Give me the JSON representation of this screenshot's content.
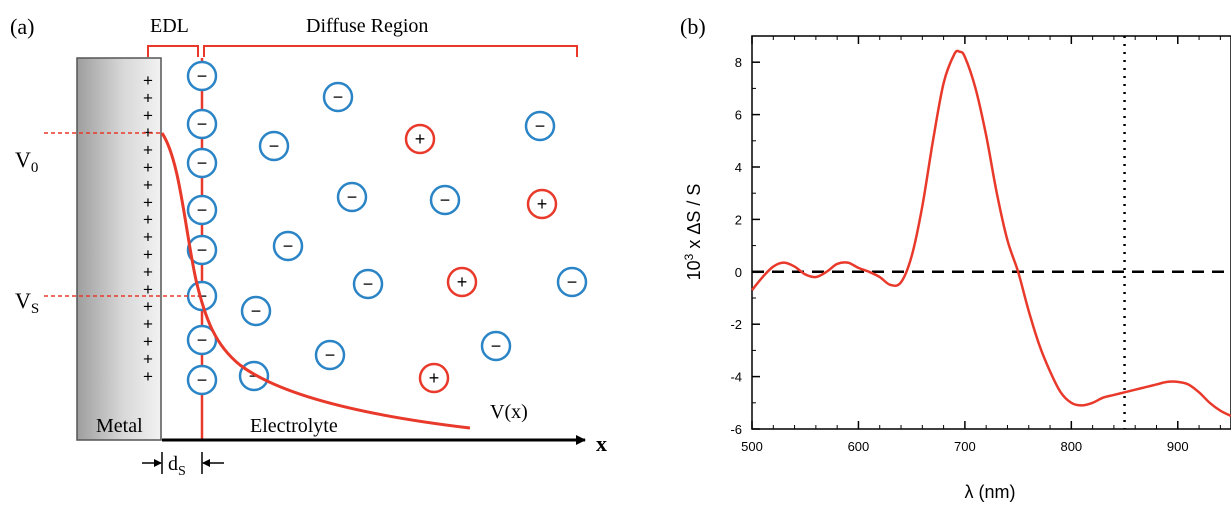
{
  "panel_a": {
    "label": "(a)",
    "edl_label": "EDL",
    "diffuse_label": "Diffuse Region",
    "v0_label": "V",
    "v0_sub": "0",
    "vs_label": "V",
    "vs_sub": "S",
    "metal_label": "Metal",
    "electrolyte_label": "Electrolyte",
    "vx_label": "V(x)",
    "x_label": "x",
    "ds_label": "d",
    "ds_sub": "S",
    "plus_sign": "+",
    "minus_sign": "−",
    "colors": {
      "red": "#e8392b",
      "blue": "#2a84c6",
      "metal_dark": "#a9a9a9",
      "metal_light": "#ececec"
    }
  },
  "panel_b": {
    "label": "(b)",
    "chart_data": {
      "type": "line",
      "xlabel": "λ (nm)",
      "ylabel_base": "10",
      "ylabel_exp": "3",
      "ylabel_rest": " x ΔS / S",
      "xlim": [
        500,
        950
      ],
      "ylim": [
        -6,
        9
      ],
      "xticks": [
        500,
        600,
        700,
        800,
        900
      ],
      "yticks": [
        -6,
        -4,
        -2,
        0,
        2,
        4,
        6,
        8
      ],
      "reference_lines": {
        "horizontal_dashed_y": 0,
        "vertical_dotted_x": 850
      },
      "series": [
        {
          "color": "#e8392b",
          "x": [
            500,
            510,
            520,
            530,
            540,
            550,
            560,
            570,
            580,
            590,
            600,
            610,
            620,
            630,
            640,
            650,
            660,
            670,
            680,
            690,
            695,
            700,
            710,
            720,
            730,
            740,
            750,
            760,
            770,
            780,
            790,
            800,
            810,
            820,
            830,
            840,
            850,
            860,
            870,
            880,
            890,
            900,
            910,
            920,
            930,
            940,
            950
          ],
          "y": [
            -0.7,
            -0.2,
            0.2,
            0.35,
            0.2,
            -0.1,
            -0.2,
            0.0,
            0.3,
            0.35,
            0.15,
            0.0,
            -0.2,
            -0.5,
            -0.4,
            0.6,
            2.5,
            5.0,
            7.2,
            8.3,
            8.4,
            8.2,
            7.0,
            5.2,
            3.0,
            1.2,
            0.0,
            -1.5,
            -2.8,
            -3.8,
            -4.6,
            -5.0,
            -5.1,
            -5.0,
            -4.8,
            -4.7,
            -4.6,
            -4.5,
            -4.4,
            -4.3,
            -4.2,
            -4.2,
            -4.3,
            -4.6,
            -5.0,
            -5.3,
            -5.5
          ]
        }
      ]
    }
  }
}
